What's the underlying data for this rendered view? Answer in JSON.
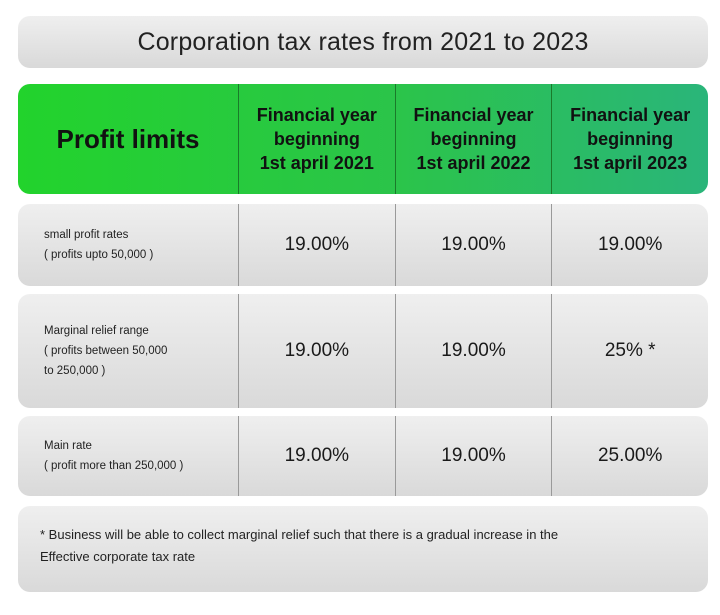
{
  "title": "Corporation tax rates from 2021 to 2023",
  "header": {
    "profit_limits": "Profit limits",
    "years": [
      [
        "Financial year",
        "beginning",
        "1st april 2021"
      ],
      [
        "Financial year",
        "beginning",
        "1st april 2022"
      ],
      [
        "Financial year",
        "beginning",
        "1st april 2023"
      ]
    ]
  },
  "rows": [
    {
      "label_lines": [
        "small profit rates",
        "( profits upto  50,000 )"
      ],
      "values": [
        "19.00%",
        "19.00%",
        "19.00%"
      ]
    },
    {
      "label_lines": [
        "Marginal relief range",
        "( profits between  50,000",
        "to   250,000 )"
      ],
      "values": [
        "19.00%",
        "19.00%",
        "25% *"
      ]
    },
    {
      "label_lines": [
        "Main rate",
        "( profit more than   250,000 )"
      ],
      "values": [
        "19.00%",
        "19.00%",
        "25.00%"
      ]
    }
  ],
  "footnote": {
    "line1": "* Business will be able to collect marginal relief such that there is a gradual increase in the",
    "line2": "Effective corporate tax rate"
  },
  "colors": {
    "header_green_start": "#22d32c",
    "header_green_end": "#2ab57a",
    "panel_gray": "#e2e2e2"
  }
}
